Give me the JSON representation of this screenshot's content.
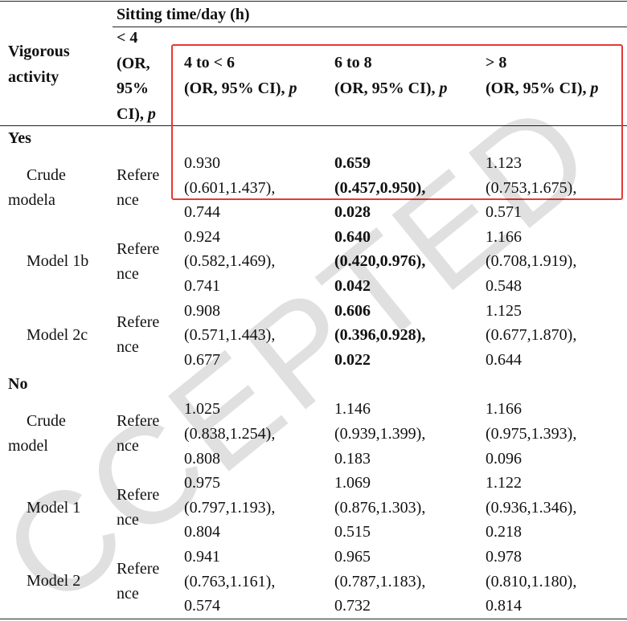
{
  "header": {
    "group_title": "Sitting time/day (h)",
    "row_header": "Vigorous activity",
    "columns": [
      {
        "range": "< 4",
        "label": "(OR, 95% CI),",
        "p": "p"
      },
      {
        "range": "4 to < 6",
        "label": "(OR, 95% CI),",
        "p": "p"
      },
      {
        "range": "6 to 8",
        "label": "(OR, 95% CI),",
        "p": "p"
      },
      {
        "range": "> 8",
        "label": "(OR, 95% CI),",
        "p": "p"
      }
    ]
  },
  "sections": [
    {
      "title": "Yes",
      "rows": [
        {
          "label": "Crude modela",
          "reference": [
            "Refere",
            "nce"
          ],
          "cells": [
            {
              "or": "0.930",
              "ci": "(0.601,1.437),",
              "p": "0.744",
              "bold": false
            },
            {
              "or": "0.659",
              "ci": "(0.457,0.950),",
              "p": "0.028",
              "bold": true
            },
            {
              "or": "1.123",
              "ci": "(0.753,1.675),",
              "p": "0.571",
              "bold": false
            }
          ]
        },
        {
          "label": "Model 1b",
          "reference": [
            "Refere",
            "nce"
          ],
          "cells": [
            {
              "or": "0.924",
              "ci": "(0.582,1.469),",
              "p": "0.741",
              "bold": false
            },
            {
              "or": "0.640",
              "ci": "(0.420,0.976),",
              "p": "0.042",
              "bold": true
            },
            {
              "or": "1.166",
              "ci": "(0.708,1.919),",
              "p": "0.548",
              "bold": false
            }
          ]
        },
        {
          "label": "Model 2c",
          "reference": [
            "Refere",
            "nce"
          ],
          "cells": [
            {
              "or": "0.908",
              "ci": "(0.571,1.443),",
              "p": "0.677",
              "bold": false
            },
            {
              "or": "0.606",
              "ci": "(0.396,0.928),",
              "p": "0.022",
              "bold": true
            },
            {
              "or": "1.125",
              "ci": "(0.677,1.870),",
              "p": "0.644",
              "bold": false
            }
          ]
        }
      ]
    },
    {
      "title": "No",
      "rows": [
        {
          "label": "Crude model",
          "reference": [
            "Refere",
            "nce"
          ],
          "cells": [
            {
              "or": "1.025",
              "ci": "(0.838,1.254),",
              "p": "0.808",
              "bold": false
            },
            {
              "or": "1.146",
              "ci": "(0.939,1.399),",
              "p": "0.183",
              "bold": false
            },
            {
              "or": "1.166",
              "ci": "(0.975,1.393),",
              "p": "0.096",
              "bold": false
            }
          ]
        },
        {
          "label": "Model 1",
          "reference": [
            "Refere",
            "nce"
          ],
          "cells": [
            {
              "or": "0.975",
              "ci": "(0.797,1.193),",
              "p": "0.804",
              "bold": false
            },
            {
              "or": "1.069",
              "ci": "(0.876,1.303),",
              "p": "0.515",
              "bold": false
            },
            {
              "or": "1.122",
              "ci": "(0.936,1.346),",
              "p": "0.218",
              "bold": false
            }
          ]
        },
        {
          "label": "Model 2",
          "reference": [
            "Refere",
            "nce"
          ],
          "cells": [
            {
              "or": "0.941",
              "ci": "(0.763,1.161),",
              "p": "0.574",
              "bold": false
            },
            {
              "or": "0.965",
              "ci": "(0.787,1.183),",
              "p": "0.732",
              "bold": false
            },
            {
              "or": "0.978",
              "ci": "(0.810,1.180),",
              "p": "0.814",
              "bold": false
            }
          ]
        }
      ]
    }
  ],
  "watermark": "CCEPTED"
}
